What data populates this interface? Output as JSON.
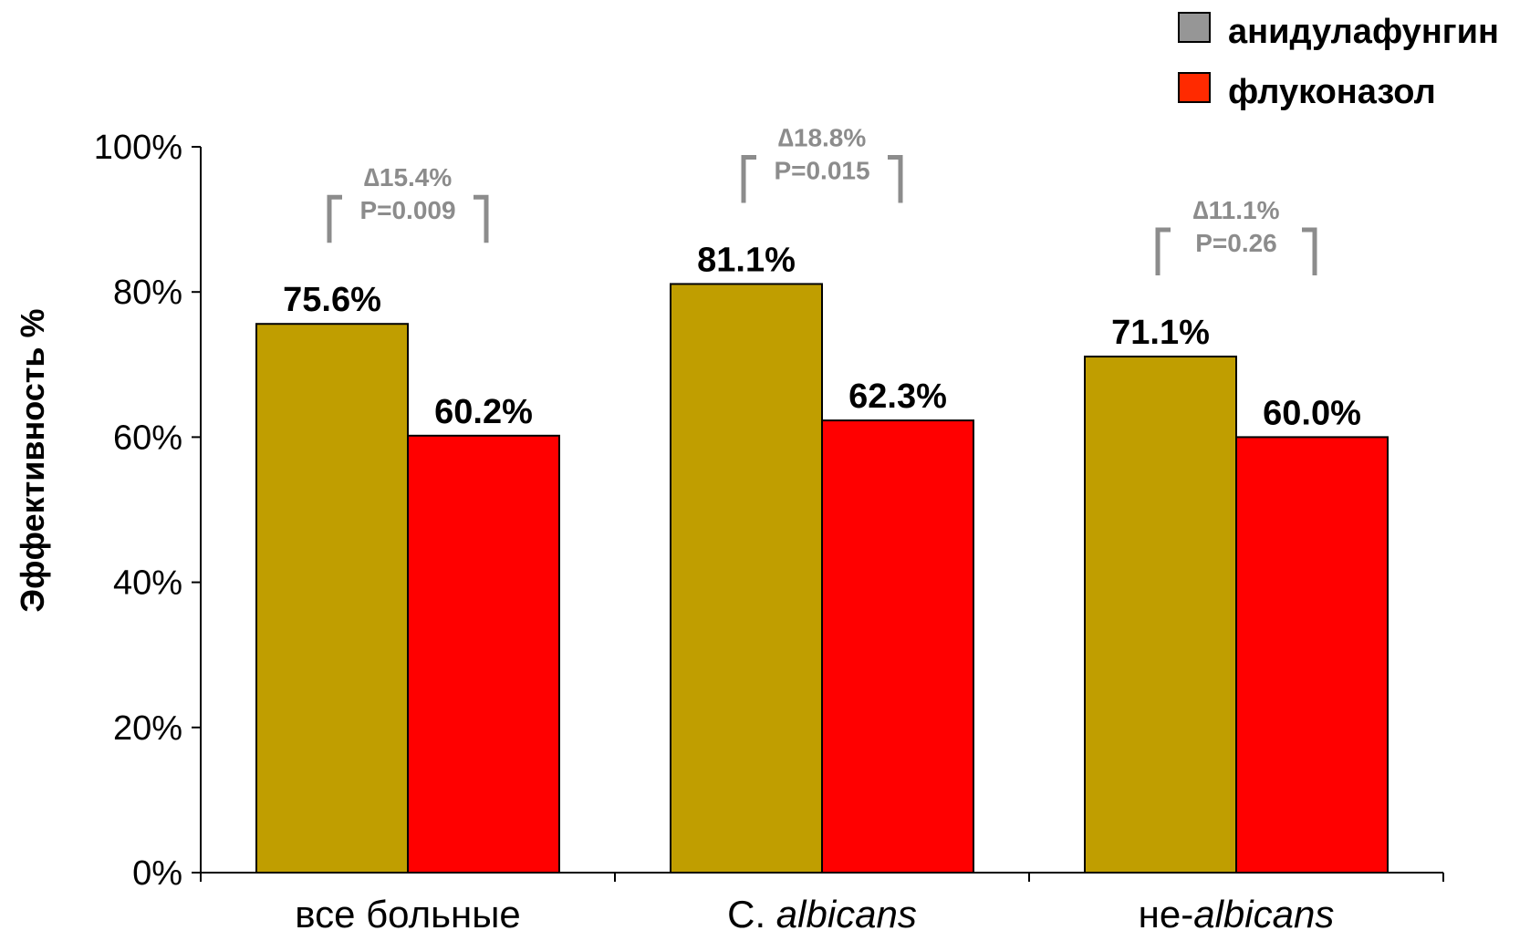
{
  "chart_data": {
    "type": "bar",
    "title": "",
    "xlabel": "",
    "ylabel": "Эффективность %",
    "ylim": [
      0,
      100
    ],
    "yticks": [
      "0%",
      "20%",
      "40%",
      "60%",
      "80%",
      "100%"
    ],
    "ytick_values": [
      0,
      20,
      40,
      60,
      80,
      100
    ],
    "grid": false,
    "legend_position": "top-right",
    "categories": [
      {
        "plain": "все больные",
        "italic": ""
      },
      {
        "plain": "C. ",
        "italic": "albicans"
      },
      {
        "plain": "не-",
        "italic": "albicans"
      }
    ],
    "series": [
      {
        "name": "анидулафунгин",
        "color": "#c09e00",
        "legend_color": "#969696",
        "values": [
          75.6,
          81.1,
          71.1
        ],
        "labels": [
          "75.6%",
          "81.1%",
          "71.1%"
        ]
      },
      {
        "name": "флуконазол",
        "color": "#ff0000",
        "legend_color": "#ff2a00",
        "values": [
          60.2,
          62.3,
          60.0
        ],
        "labels": [
          "60.2%",
          "62.3%",
          "60.0%"
        ]
      }
    ],
    "annotations": [
      {
        "delta": "∆15.4%",
        "p": "P=0.009"
      },
      {
        "delta": "∆18.8%",
        "p": "P=0.015"
      },
      {
        "delta": "∆11.1%",
        "p": "P=0.26"
      }
    ],
    "annotation_color": "#8c8c8c"
  }
}
